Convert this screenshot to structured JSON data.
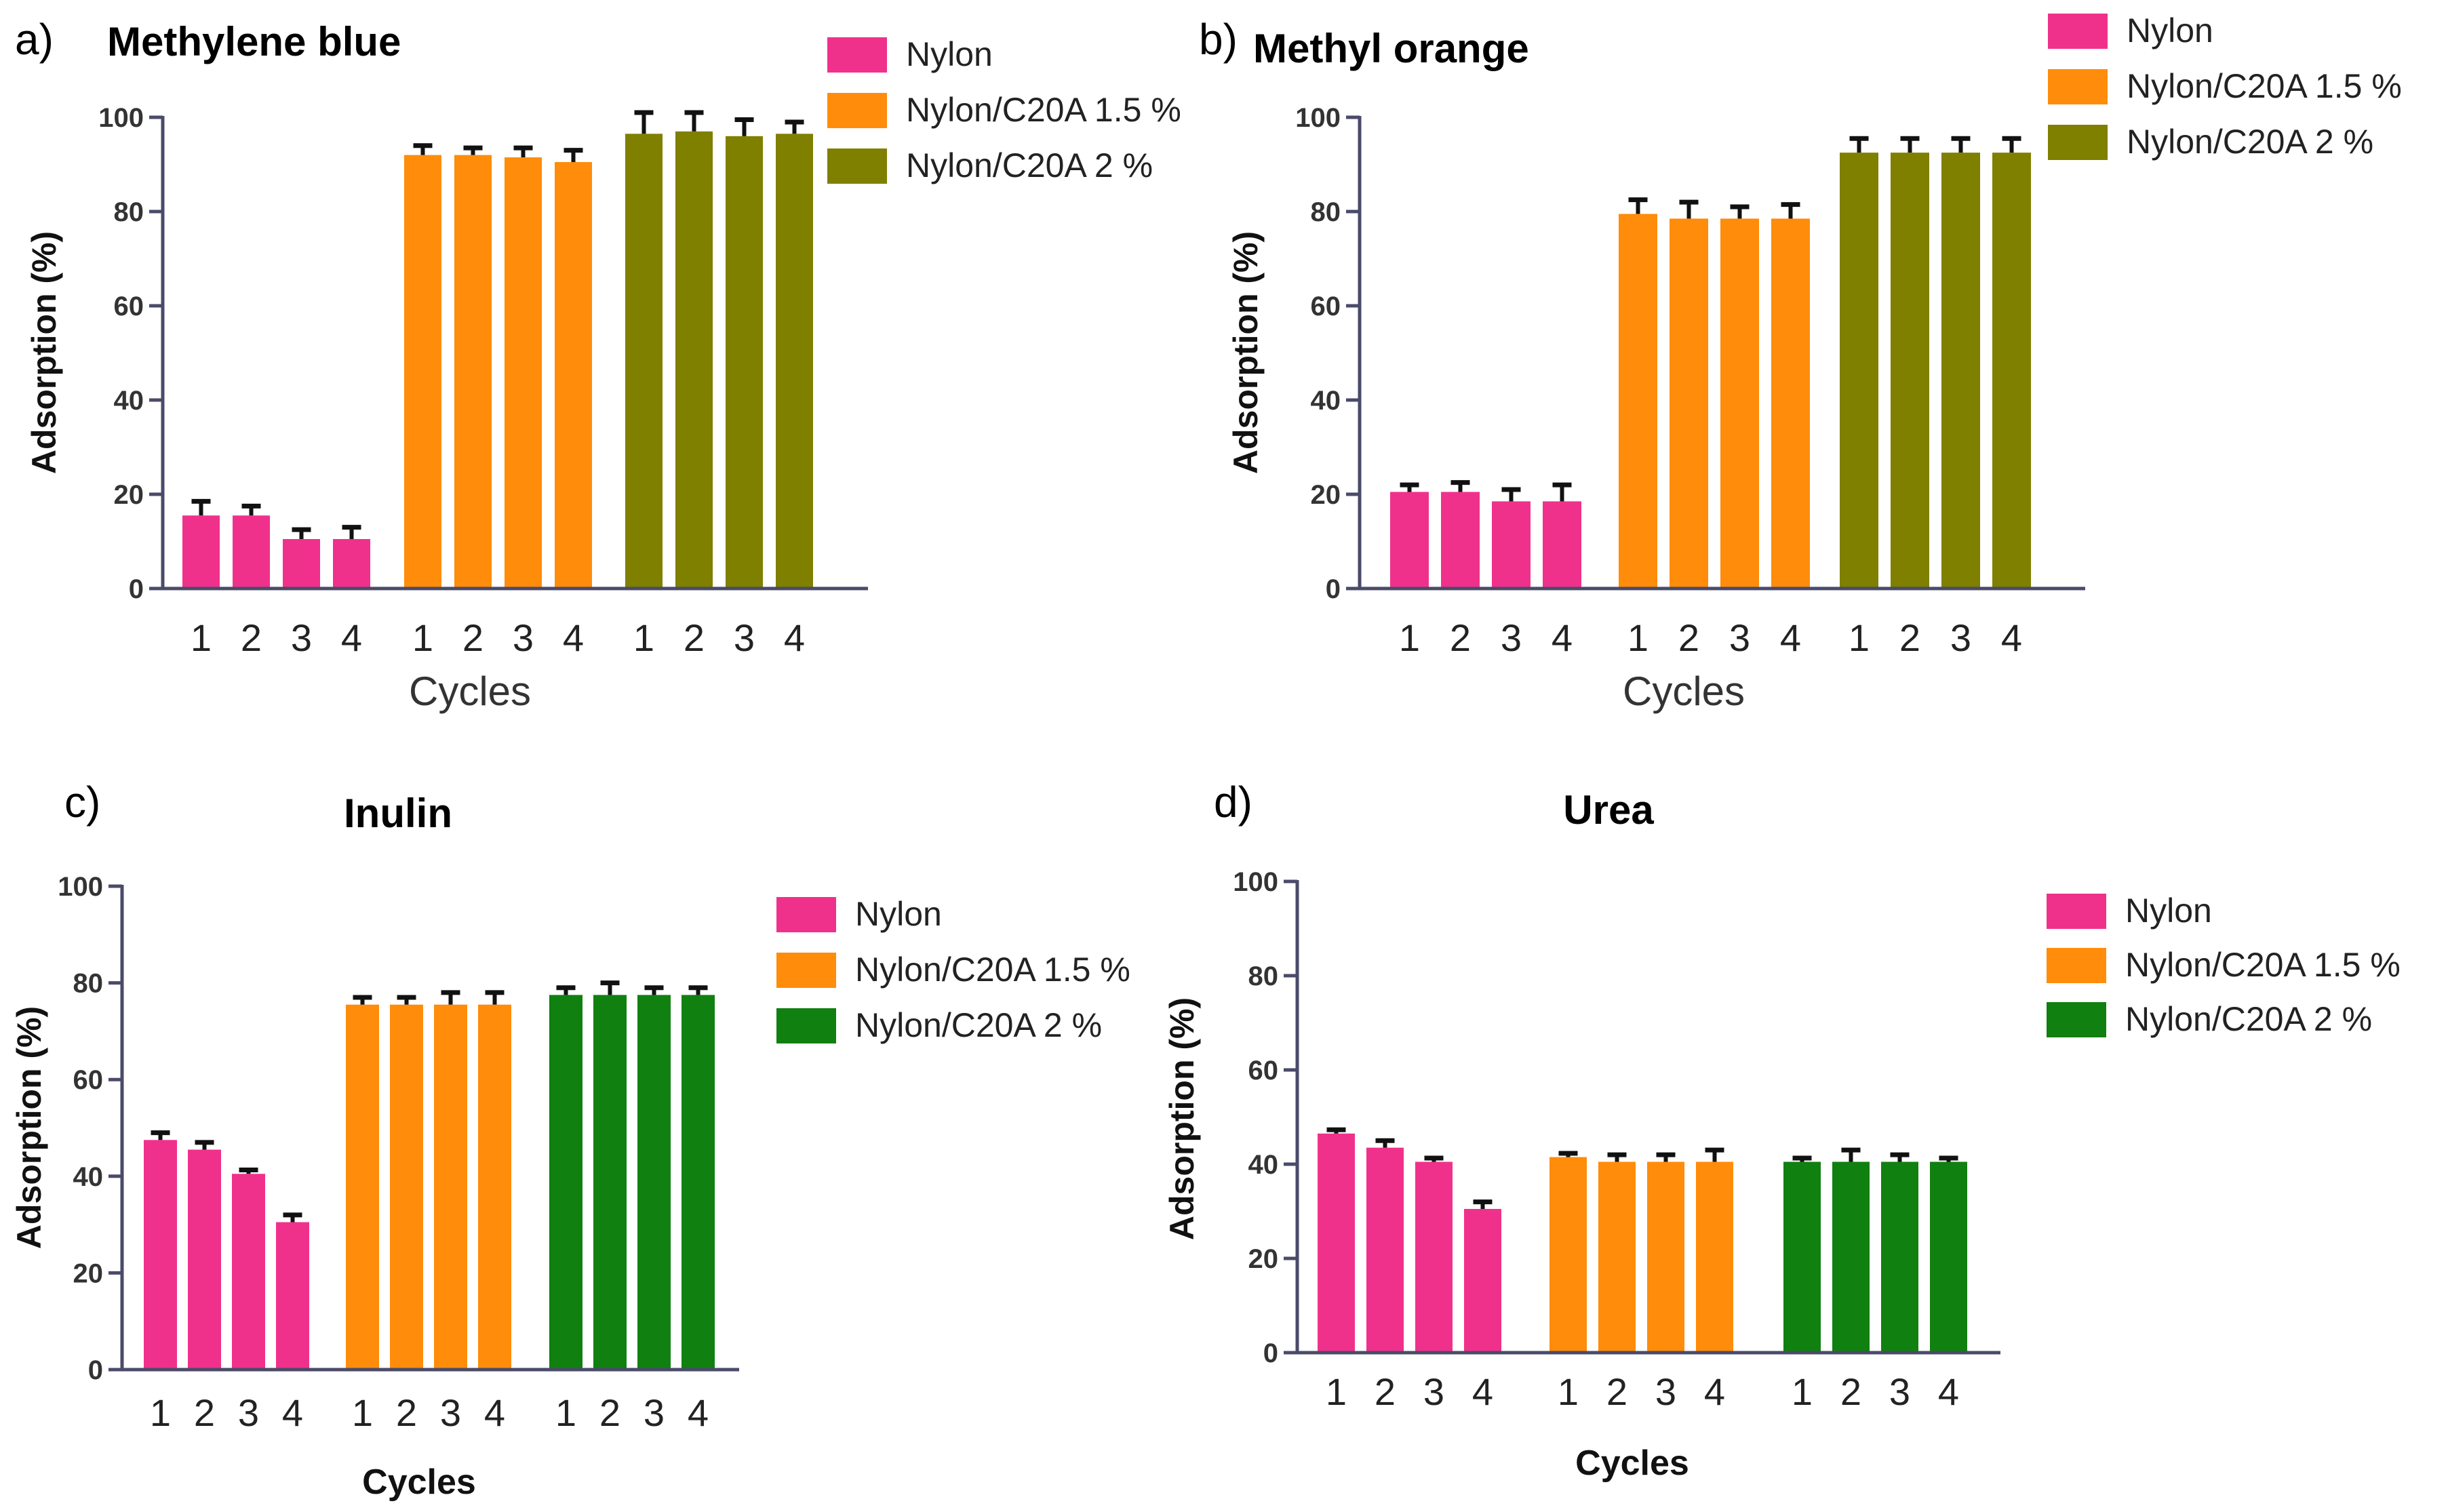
{
  "chart_data": [
    {
      "type": "bar",
      "panel_label": "a)",
      "title": "Methylene blue",
      "xlabel": "Cycles",
      "ylabel": "Adsorption (%)",
      "ylim": [
        0,
        100
      ],
      "yticks": [
        0,
        20,
        40,
        60,
        80,
        100
      ],
      "categories": [
        "1",
        "2",
        "3",
        "4"
      ],
      "series": [
        {
          "name": "Nylon",
          "color": "#f0318c",
          "values": [
            15.5,
            15.5,
            10.5,
            10.5
          ],
          "errors": [
            3,
            2,
            2,
            2.5
          ]
        },
        {
          "name": "Nylon/C20A 1.5 %",
          "color": "#ff8c0a",
          "values": [
            92,
            92,
            91.5,
            90.5
          ],
          "errors": [
            2,
            1.5,
            2,
            2.5
          ]
        },
        {
          "name": "Nylon/C20A 2 %",
          "color": "#7f7f00",
          "values": [
            96.5,
            97,
            96,
            96.5
          ],
          "errors": [
            4.5,
            4,
            3.5,
            2.5
          ]
        }
      ]
    },
    {
      "type": "bar",
      "panel_label": "b)",
      "title": "Methyl orange",
      "xlabel": "Cycles",
      "ylabel": "Adsorption (%)",
      "ylim": [
        0,
        100
      ],
      "yticks": [
        0,
        20,
        40,
        60,
        80,
        100
      ],
      "categories": [
        "1",
        "2",
        "3",
        "4"
      ],
      "series": [
        {
          "name": "Nylon",
          "color": "#f0318c",
          "values": [
            20.5,
            20.5,
            18.5,
            18.5
          ],
          "errors": [
            1.5,
            2,
            2.5,
            3.5
          ]
        },
        {
          "name": "Nylon/C20A 1.5 %",
          "color": "#ff8c0a",
          "values": [
            79.5,
            78.5,
            78.5,
            78.5
          ],
          "errors": [
            3,
            3.5,
            2.5,
            3
          ]
        },
        {
          "name": "Nylon/C20A 2 %",
          "color": "#7f7f00",
          "values": [
            92.5,
            92.5,
            92.5,
            92.5
          ],
          "errors": [
            3,
            3,
            3,
            3
          ]
        }
      ]
    },
    {
      "type": "bar",
      "panel_label": "c)",
      "title": "Inulin",
      "xlabel": "Cycles",
      "ylabel": "Adsorption (%)",
      "ylim": [
        0,
        100
      ],
      "yticks": [
        0,
        20,
        40,
        60,
        80,
        100
      ],
      "categories": [
        "1",
        "2",
        "3",
        "4"
      ],
      "series": [
        {
          "name": "Nylon",
          "color": "#f0318c",
          "values": [
            47.5,
            45.5,
            40.5,
            30.5
          ],
          "errors": [
            1.5,
            1.5,
            0.8,
            1.5
          ]
        },
        {
          "name": "Nylon/C20A 1.5 %",
          "color": "#ff8c0a",
          "values": [
            75.5,
            75.5,
            75.5,
            75.5
          ],
          "errors": [
            1.5,
            1.5,
            2.5,
            2.5
          ]
        },
        {
          "name": "Nylon/C20A 2 %",
          "color": "#108010",
          "values": [
            77.5,
            77.5,
            77.5,
            77.5
          ],
          "errors": [
            1.5,
            2.5,
            1.5,
            1.5
          ]
        }
      ]
    },
    {
      "type": "bar",
      "panel_label": "d)",
      "title": "Urea",
      "xlabel": "Cycles",
      "ylabel": "Adsorption (%)",
      "ylim": [
        0,
        100
      ],
      "yticks": [
        0,
        20,
        40,
        60,
        80,
        100
      ],
      "categories": [
        "1",
        "2",
        "3",
        "4"
      ],
      "series": [
        {
          "name": "Nylon",
          "color": "#f0318c",
          "values": [
            46.5,
            43.5,
            40.5,
            30.5
          ],
          "errors": [
            0.8,
            1.5,
            0.8,
            1.5
          ]
        },
        {
          "name": "Nylon/C20A 1.5 %",
          "color": "#ff8c0a",
          "values": [
            41.5,
            40.5,
            40.5,
            40.5
          ],
          "errors": [
            0.8,
            1.5,
            1.5,
            2.5
          ]
        },
        {
          "name": "Nylon/C20A 2 %",
          "color": "#108010",
          "values": [
            40.5,
            40.5,
            40.5,
            40.5
          ],
          "errors": [
            0.8,
            2.5,
            1.5,
            0.8
          ]
        }
      ]
    }
  ]
}
